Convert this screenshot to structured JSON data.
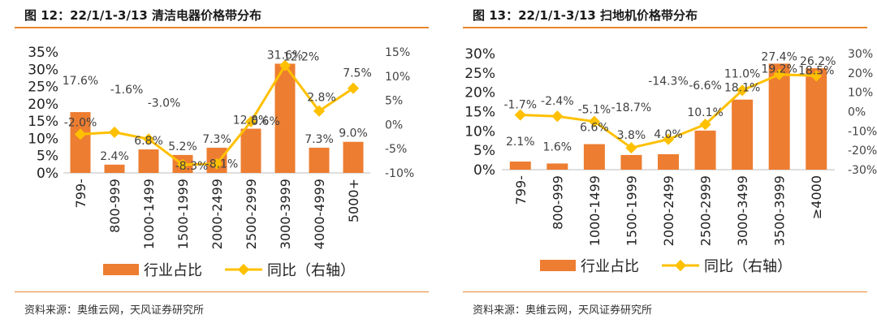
{
  "chart_data": [
    {
      "type": "bar",
      "title": "图 12：22/1/1-3/13 清洁电器价格带分布",
      "source": "资料来源：奥维云网，天风证券研究所",
      "categories": [
        "799-",
        "800-999",
        "1000-1499",
        "1500-1999",
        "2000-2499",
        "2500-2999",
        "3000-3999",
        "4000-4999",
        "5000+"
      ],
      "series": [
        {
          "name": "行业占比",
          "axis": "left",
          "values": [
            17.6,
            2.4,
            6.8,
            5.2,
            7.3,
            12.8,
            31.6,
            7.3,
            9.0
          ],
          "labels": [
            "17.6%",
            "2.4%",
            "6.8%",
            "5.2%",
            "7.3%",
            "12.8%",
            "31.6%",
            "7.3%",
            "9.0%"
          ]
        },
        {
          "name": "同比（右轴）",
          "axis": "right",
          "type": "line",
          "values": [
            -2.0,
            -1.6,
            -3.0,
            -8.3,
            -8.1,
            0.6,
            12.2,
            2.8,
            7.5
          ],
          "labels": [
            "-2.0%",
            "-1.6%",
            "-3.0%",
            "-8.3%",
            "-8.1%",
            "0.6%",
            "12.2%",
            "2.8%",
            "7.5%"
          ]
        }
      ],
      "y_left": {
        "ticks": [
          "35%",
          "30%",
          "25%",
          "20%",
          "15%",
          "10%",
          "5%",
          "0%"
        ]
      },
      "y_right": {
        "ticks": [
          "15%",
          "10%",
          "5%",
          "0%",
          "-5%",
          "-10%"
        ]
      },
      "ylim_left": [
        0,
        35
      ],
      "ylim_right": [
        -10,
        15
      ],
      "legend": [
        "行业占比",
        "同比（右轴）"
      ],
      "legend_position": "bottom",
      "grid": false,
      "colors": {
        "bar": "#ED7D31",
        "line": "#FFC000"
      }
    },
    {
      "type": "bar",
      "title": "图 13：22/1/1-3/13 扫地机价格带分布",
      "source": "资料来源：奥维云网，天风证券研究所",
      "categories": [
        "799-",
        "800-999",
        "1000-1499",
        "1500-1999",
        "2000-2499",
        "2500-2999",
        "3000-3499",
        "3500-3999",
        "≥4000"
      ],
      "series": [
        {
          "name": "行业占比",
          "axis": "left",
          "values": [
            2.1,
            1.6,
            6.6,
            3.8,
            4.0,
            10.1,
            18.1,
            27.4,
            26.2
          ],
          "labels": [
            "2.1%",
            "1.6%",
            "6.6%",
            "3.8%",
            "4.0%",
            "10.1%",
            "18.1%",
            "27.4%",
            "26.2%"
          ]
        },
        {
          "name": "同比（右轴）",
          "axis": "right",
          "type": "line",
          "values": [
            -1.7,
            -2.4,
            -5.1,
            -18.7,
            -14.3,
            -6.6,
            11.0,
            19.2,
            18.5
          ],
          "labels": [
            "-1.7%",
            "-2.4%",
            "-5.1%",
            "-18.7%",
            "-14.3%",
            "-6.6%",
            "11.0%",
            "19.2%",
            "18.5%"
          ]
        }
      ],
      "y_left": {
        "ticks": [
          "30%",
          "25%",
          "20%",
          "15%",
          "10%",
          "5%",
          "0%"
        ]
      },
      "y_right": {
        "ticks": [
          "30%",
          "20%",
          "10%",
          "0%",
          "-10%",
          "-20%",
          "-30%"
        ]
      },
      "ylim_left": [
        0,
        30
      ],
      "ylim_right": [
        -30,
        30
      ],
      "legend": [
        "行业占比",
        "同比（右轴）"
      ],
      "legend_position": "bottom",
      "grid": false,
      "colors": {
        "bar": "#ED7D31",
        "line": "#FFC000"
      }
    }
  ]
}
